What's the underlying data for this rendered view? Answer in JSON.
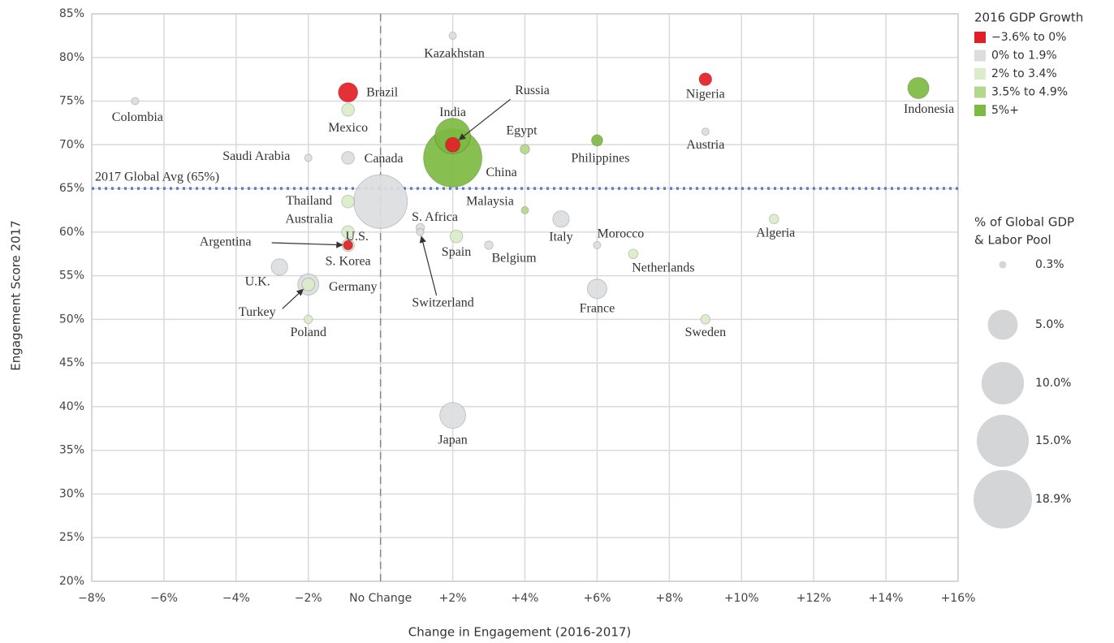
{
  "chart_data": {
    "type": "bubble",
    "x_label": "Change in Engagement (2016-2017)",
    "y_label": "Engagement Score 2017",
    "xlim": [
      -8,
      16
    ],
    "ylim": [
      20,
      85
    ],
    "xticks": [
      {
        "value": -8,
        "label": "−8%"
      },
      {
        "value": -6,
        "label": "−6%"
      },
      {
        "value": -4,
        "label": "−4%"
      },
      {
        "value": -2,
        "label": "−2%"
      },
      {
        "value": 0,
        "label": "No Change"
      },
      {
        "value": 2,
        "label": "+2%"
      },
      {
        "value": 4,
        "label": "+4%"
      },
      {
        "value": 6,
        "label": "+6%"
      },
      {
        "value": 8,
        "label": "+8%"
      },
      {
        "value": 10,
        "label": "+10%"
      },
      {
        "value": 12,
        "label": "+12%"
      },
      {
        "value": 14,
        "label": "+14%"
      },
      {
        "value": 16,
        "label": "+16%"
      }
    ],
    "yticks": [
      {
        "value": 20,
        "label": "20%"
      },
      {
        "value": 25,
        "label": "25%"
      },
      {
        "value": 30,
        "label": "30%"
      },
      {
        "value": 35,
        "label": "35%"
      },
      {
        "value": 40,
        "label": "40%"
      },
      {
        "value": 45,
        "label": "45%"
      },
      {
        "value": 50,
        "label": "50%"
      },
      {
        "value": 55,
        "label": "55%"
      },
      {
        "value": 60,
        "label": "60%"
      },
      {
        "value": 65,
        "label": "65%"
      },
      {
        "value": 70,
        "label": "70%"
      },
      {
        "value": 75,
        "label": "75%"
      },
      {
        "value": 80,
        "label": "80%"
      },
      {
        "value": 85,
        "label": "85%"
      }
    ],
    "grid": true,
    "reference_line": {
      "value": 65,
      "label": "2017 Global Avg (65%)",
      "color": "#5b7cc4"
    },
    "legend_title": "2016 GDP Growth",
    "series": [
      {
        "name": "−3.6% to 0%",
        "color": "#e41e26",
        "labels": [
          "Brazil",
          "Russia",
          "Argentina",
          "Nigeria"
        ],
        "x": [
          -0.9,
          2,
          -0.9,
          9
        ],
        "values": [
          76,
          70,
          58.5,
          77.5
        ],
        "sizes": [
          2.1,
          1.2,
          0.5,
          0.9
        ]
      },
      {
        "name": "0% to 1.9%",
        "color": "#dcdddf",
        "labels": [
          "Colombia",
          "Saudi Arabia",
          "Canada",
          "U.S.",
          "U.K.",
          "Germany",
          "Kazakhstan",
          "S. Africa",
          "Switzerland",
          "Belgium",
          "Italy",
          "Morocco",
          "France",
          "Austria",
          "Japan"
        ],
        "x": [
          -6.8,
          -2,
          -0.9,
          0,
          -2.8,
          -2,
          2,
          1.1,
          1.1,
          3,
          5,
          6,
          6,
          9,
          2
        ],
        "values": [
          75,
          68.5,
          68.5,
          63.5,
          56,
          54,
          82.5,
          60.5,
          60,
          58.5,
          61.5,
          58.5,
          53.5,
          71.5,
          39
        ],
        "sizes": [
          0.3,
          0.3,
          0.9,
          16,
          1.5,
          2.5,
          0.3,
          0.4,
          0.3,
          0.4,
          1.5,
          0.3,
          2.1,
          0.3,
          3.7
        ]
      },
      {
        "name": "2% to 3.4%",
        "color": "#dbecca",
        "labels": [
          "Mexico",
          "Thailand",
          "Australia",
          "S. Korea",
          "Turkey",
          "Poland",
          "Spain",
          "Netherlands",
          "Algeria",
          "Sweden"
        ],
        "x": [
          -0.9,
          -0.9,
          -0.9,
          -0.9,
          -2,
          -2,
          2.1,
          7,
          10.9,
          9
        ],
        "values": [
          74,
          63.5,
          60,
          58.5,
          54,
          50,
          59.5,
          57.5,
          61.5,
          50
        ],
        "sizes": [
          0.9,
          0.9,
          0.9,
          0.9,
          0.9,
          0.4,
          0.9,
          0.5,
          0.5,
          0.5
        ]
      },
      {
        "name": "3.5% to 4.9%",
        "color": "#b3d78c",
        "labels": [
          "Egypt",
          "Malaysia"
        ],
        "x": [
          4,
          4
        ],
        "values": [
          69.5,
          62.5
        ],
        "sizes": [
          0.5,
          0.3
        ]
      },
      {
        "name": "5%+",
        "color": "#7dba42",
        "labels": [
          "India",
          "China",
          "Philippines",
          "Indonesia"
        ],
        "x": [
          2,
          2,
          6,
          14.9
        ],
        "values": [
          71,
          68.5,
          70.5,
          76.5
        ],
        "sizes": [
          7,
          18.9,
          0.7,
          2.5
        ]
      }
    ],
    "size_legend": {
      "title": [
        "% of Global GDP",
        "& Labor Pool"
      ],
      "values": [
        0.3,
        5,
        10,
        15,
        18.9
      ],
      "labels": [
        "0.3%",
        "5.0%",
        "10.0%",
        "15.0%",
        "18.9%"
      ]
    }
  }
}
